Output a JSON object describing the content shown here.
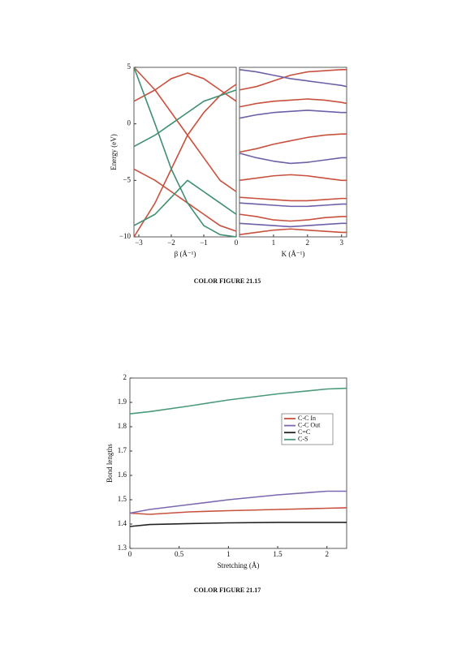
{
  "captions": [
    "COLOR FIGURE 21.15",
    "COLOR FIGURE 21.17"
  ],
  "chart_data": [
    {
      "type": "line",
      "ylabel": "Energy (eV)",
      "xlabel": "β (Å⁻¹)",
      "xlim": [
        -3.15,
        0
      ],
      "ylim": [
        -10,
        5
      ],
      "xticks": [
        {
          "value": -3,
          "label": "−3"
        },
        {
          "value": -2,
          "label": "−2"
        },
        {
          "value": -1,
          "label": "−1"
        },
        0
      ],
      "yticks": [
        5,
        0,
        {
          "value": -5,
          "label": "−5"
        },
        {
          "value": -10,
          "label": "−10"
        }
      ],
      "x": [
        -3.15,
        -2.5,
        -2,
        -1.5,
        -1,
        -0.5,
        0
      ],
      "series": [
        {
          "color": "#c8513e",
          "values": [
            -10,
            -7,
            -4,
            -1,
            1,
            2.5,
            3.5
          ]
        },
        {
          "color": "#c8513e",
          "values": [
            5,
            3,
            1,
            -1,
            -3,
            -5,
            -6
          ]
        },
        {
          "color": "#c8513e",
          "values": [
            -4,
            -5,
            -6,
            -7,
            -8,
            -9,
            -9.5
          ]
        },
        {
          "color": "#c8513e",
          "values": [
            2,
            3,
            4,
            4.5,
            4,
            3,
            2
          ]
        },
        {
          "color": "#3f8f70",
          "values": [
            5,
            0,
            -4,
            -7,
            -9,
            -9.8,
            -10
          ]
        },
        {
          "color": "#3f8f70",
          "values": [
            -2,
            -1,
            0,
            1,
            2,
            2.5,
            3
          ]
        },
        {
          "color": "#3f8f70",
          "values": [
            -9,
            -8,
            -6.5,
            -5,
            -6,
            -7,
            -8
          ]
        }
      ]
    },
    {
      "type": "line",
      "xlabel": "K (Å⁻¹)",
      "xlim": [
        0,
        3.15
      ],
      "ylim": [
        -10,
        5
      ],
      "xticks": [
        1,
        2,
        3
      ],
      "x": [
        0,
        0.5,
        1,
        1.5,
        2,
        2.5,
        3,
        3.15
      ],
      "series": [
        {
          "color": "#c8513e",
          "values": [
            3.0,
            3.3,
            3.8,
            4.3,
            4.6,
            4.7,
            4.8,
            4.8
          ]
        },
        {
          "color": "#c8513e",
          "values": [
            1.5,
            1.8,
            2.0,
            2.1,
            2.2,
            2.1,
            1.9,
            1.8
          ]
        },
        {
          "color": "#c8513e",
          "values": [
            -2.5,
            -2.2,
            -1.8,
            -1.5,
            -1.2,
            -1.0,
            -0.9,
            -0.9
          ]
        },
        {
          "color": "#c8513e",
          "values": [
            -5.0,
            -4.8,
            -4.6,
            -4.5,
            -4.6,
            -4.8,
            -5.0,
            -5.0
          ]
        },
        {
          "color": "#c8513e",
          "values": [
            -6.5,
            -6.6,
            -6.7,
            -6.8,
            -6.8,
            -6.7,
            -6.6,
            -6.6
          ]
        },
        {
          "color": "#c8513e",
          "values": [
            -8.0,
            -8.2,
            -8.5,
            -8.6,
            -8.5,
            -8.3,
            -8.2,
            -8.2
          ]
        },
        {
          "color": "#c8513e",
          "values": [
            -9.8,
            -9.6,
            -9.4,
            -9.3,
            -9.4,
            -9.5,
            -9.6,
            -9.6
          ]
        },
        {
          "color": "#6e5fa8",
          "values": [
            4.8,
            4.6,
            4.3,
            4.0,
            3.8,
            3.6,
            3.4,
            3.3
          ]
        },
        {
          "color": "#6e5fa8",
          "values": [
            0.5,
            0.8,
            1.0,
            1.1,
            1.2,
            1.1,
            1.0,
            1.0
          ]
        },
        {
          "color": "#6e5fa8",
          "values": [
            -2.6,
            -3.0,
            -3.3,
            -3.5,
            -3.4,
            -3.2,
            -3.0,
            -3.0
          ]
        },
        {
          "color": "#6e5fa8",
          "values": [
            -7.0,
            -7.1,
            -7.2,
            -7.3,
            -7.3,
            -7.2,
            -7.1,
            -7.1
          ]
        },
        {
          "color": "#6e5fa8",
          "values": [
            -8.8,
            -8.9,
            -9.0,
            -9.1,
            -9.0,
            -8.9,
            -8.8,
            -8.8
          ]
        }
      ]
    },
    {
      "type": "line",
      "ylabel": "Bond lengths",
      "xlabel": "Stretching (Å)",
      "xlim": [
        0,
        2.2
      ],
      "ylim": [
        1.3,
        2
      ],
      "xticks": [
        0,
        0.5,
        1,
        1.5,
        2
      ],
      "yticks": [
        1.3,
        1.4,
        1.5,
        1.6,
        1.7,
        1.8,
        1.9,
        2
      ],
      "legend": "upper right",
      "x": [
        0,
        0.2,
        0.6,
        1,
        1.5,
        2,
        2.2
      ],
      "series": [
        {
          "name": "C-C In",
          "color": "#c8513e",
          "values": [
            1.445,
            1.44,
            1.45,
            1.455,
            1.46,
            1.465,
            1.467
          ]
        },
        {
          "name": "C-C Out",
          "color": "#7b68b0",
          "values": [
            1.445,
            1.46,
            1.48,
            1.5,
            1.52,
            1.535,
            1.535
          ]
        },
        {
          "name": "C=C",
          "color": "#222222",
          "values": [
            1.39,
            1.398,
            1.402,
            1.405,
            1.407,
            1.407,
            1.407
          ]
        },
        {
          "name": "C-S",
          "color": "#4a9a7a",
          "values": [
            1.853,
            1.862,
            1.885,
            1.91,
            1.935,
            1.955,
            1.958
          ]
        }
      ]
    }
  ]
}
